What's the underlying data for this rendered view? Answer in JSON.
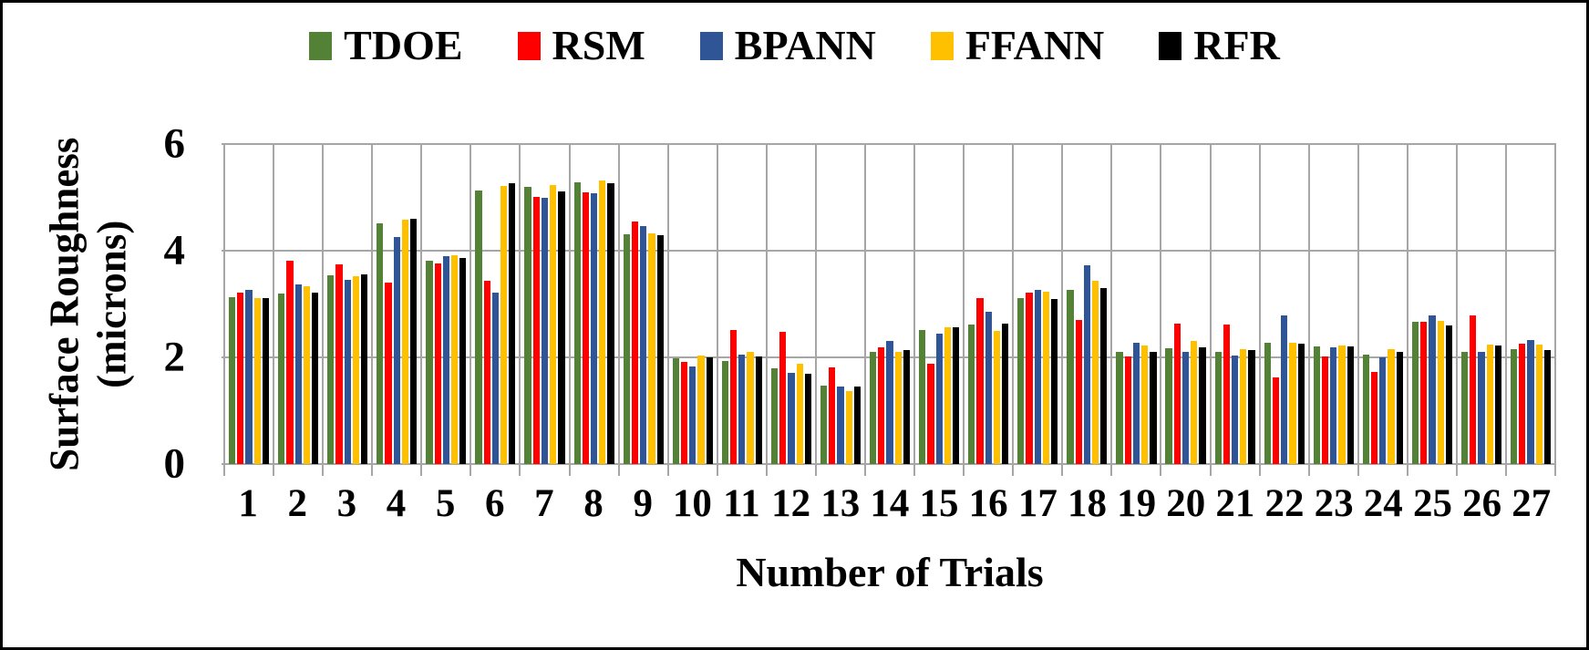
{
  "axes": {
    "x_title": "Number of Trials",
    "y_title_line1": "Surface Roughness",
    "y_title_line2": "(microns)"
  },
  "colors": {
    "gridline": "#a6a6a6",
    "background": "#ffffff",
    "border": "#000000"
  },
  "chart_data": {
    "type": "bar",
    "title": "",
    "xlabel": "Number of Trials",
    "ylabel": "Surface Roughness (microns)",
    "ylim": [
      0,
      6
    ],
    "yticks": [
      0,
      2,
      4,
      6
    ],
    "grid": "horizontal lines at yticks plus vertical category separators, color #a6a6a6",
    "legend_position": "top-center",
    "categories": [
      "1",
      "2",
      "3",
      "4",
      "5",
      "6",
      "7",
      "8",
      "9",
      "10",
      "11",
      "12",
      "13",
      "14",
      "15",
      "16",
      "17",
      "18",
      "19",
      "20",
      "21",
      "22",
      "23",
      "24",
      "25",
      "26",
      "27"
    ],
    "series": [
      {
        "name": "TDOE",
        "color": "#538135",
        "values": [
          3.13,
          3.2,
          3.54,
          4.52,
          3.82,
          5.12,
          5.19,
          5.29,
          4.31,
          1.98,
          1.94,
          1.79,
          1.47,
          2.1,
          2.52,
          2.61,
          3.11,
          3.27,
          2.11,
          2.17,
          2.11,
          2.28,
          2.2,
          2.05,
          2.66,
          2.1,
          2.16
        ]
      },
      {
        "name": "RSM",
        "color": "#ff0000",
        "values": [
          3.22,
          3.82,
          3.74,
          3.41,
          3.76,
          3.44,
          5.01,
          5.09,
          4.54,
          1.91,
          2.52,
          2.48,
          1.82,
          2.18,
          1.88,
          3.11,
          3.22,
          2.7,
          2.01,
          2.64,
          2.62,
          1.63,
          2.01,
          1.73,
          2.66,
          2.78,
          2.26
        ]
      },
      {
        "name": "BPANN",
        "color": "#2f5597",
        "values": [
          3.27,
          3.37,
          3.46,
          4.25,
          3.89,
          3.22,
          5.0,
          5.08,
          4.47,
          1.83,
          2.05,
          1.71,
          1.45,
          2.3,
          2.45,
          2.86,
          3.26,
          3.72,
          2.28,
          2.1,
          2.04,
          2.79,
          2.19,
          2.0,
          2.78,
          2.1,
          2.33
        ]
      },
      {
        "name": "FFANN",
        "color": "#ffc000",
        "values": [
          3.11,
          3.33,
          3.52,
          4.59,
          3.92,
          5.21,
          5.23,
          5.32,
          4.33,
          2.04,
          2.11,
          1.88,
          1.36,
          2.11,
          2.56,
          2.49,
          3.23,
          3.43,
          2.22,
          2.31,
          2.16,
          2.27,
          2.23,
          2.16,
          2.68,
          2.24,
          2.24
        ]
      },
      {
        "name": "RFR",
        "color": "#000000",
        "values": [
          3.11,
          3.21,
          3.55,
          4.6,
          3.86,
          5.27,
          5.11,
          5.26,
          4.29,
          2.0,
          2.01,
          1.7,
          1.45,
          2.13,
          2.57,
          2.63,
          3.09,
          3.3,
          2.11,
          2.19,
          2.14,
          2.26,
          2.21,
          2.1,
          2.6,
          2.23,
          2.14
        ]
      }
    ]
  }
}
